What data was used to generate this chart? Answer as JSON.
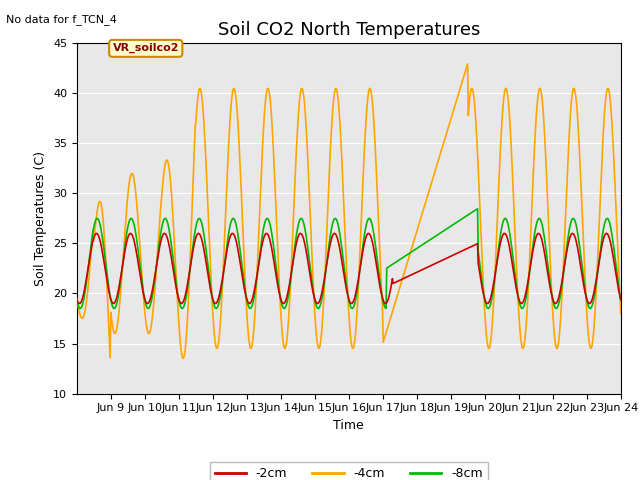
{
  "title": "Soil CO2 North Temperatures",
  "xlabel": "Time",
  "ylabel": "Soil Temperatures (C)",
  "no_data_text": "No data for f_TCN_4",
  "legend_label_text": "VR_soilco2",
  "ylim": [
    10,
    45
  ],
  "xlim_days": [
    8,
    24
  ],
  "tick_labels": [
    "Jun 9",
    "Jun 10",
    "Jun 11",
    "Jun 12",
    "Jun 13",
    "Jun 14",
    "Jun 15",
    "Jun 16",
    "Jun 17",
    "Jun 18",
    "Jun 19",
    "Jun 20",
    "Jun 21",
    "Jun 22",
    "Jun 23",
    "Jun 24"
  ],
  "series_colors": {
    "neg2cm": "#cc0000",
    "neg4cm": "#ffa500",
    "neg8cm": "#00bb00"
  },
  "legend_entries": [
    "-2cm",
    "-4cm",
    "-8cm"
  ],
  "background_color": "#e8e8e8",
  "plot_bg": "#dcdcdc",
  "title_fontsize": 13,
  "axis_fontsize": 9,
  "tick_fontsize": 8
}
